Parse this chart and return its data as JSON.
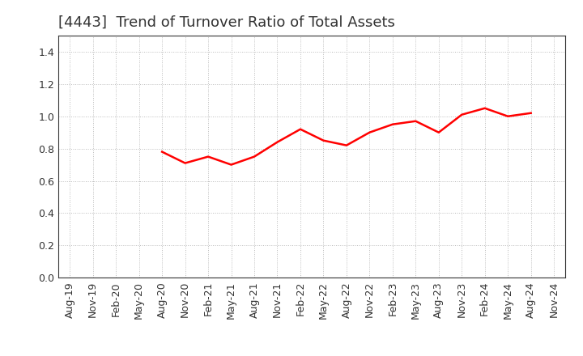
{
  "title": "[4443]  Trend of Turnover Ratio of Total Assets",
  "x_labels": [
    "Aug-19",
    "Nov-19",
    "Feb-20",
    "May-20",
    "Aug-20",
    "Nov-20",
    "Feb-21",
    "May-21",
    "Aug-21",
    "Nov-21",
    "Feb-22",
    "May-22",
    "Aug-22",
    "Nov-22",
    "Feb-23",
    "May-23",
    "Aug-23",
    "Nov-23",
    "Feb-24",
    "May-24",
    "Aug-24",
    "Nov-24"
  ],
  "x_values": [
    0,
    1,
    2,
    3,
    4,
    5,
    6,
    7,
    8,
    9,
    10,
    11,
    12,
    13,
    14,
    15,
    16,
    17,
    18,
    19,
    20,
    21
  ],
  "y_values": [
    null,
    null,
    null,
    null,
    0.78,
    0.71,
    0.75,
    0.7,
    0.75,
    0.84,
    0.92,
    0.85,
    0.82,
    0.9,
    0.95,
    0.97,
    0.9,
    1.01,
    1.05,
    1.0,
    1.02,
    null
  ],
  "ylim": [
    0.0,
    1.5
  ],
  "yticks": [
    0.0,
    0.2,
    0.4,
    0.6,
    0.8,
    1.0,
    1.2,
    1.4
  ],
  "ytick_labels": [
    "0.0",
    "0.2",
    "0.4",
    "0.6",
    "0.8",
    "1.0",
    "1.2",
    "1.4"
  ],
  "line_color": "#ff0000",
  "line_width": 1.8,
  "bg_color": "#ffffff",
  "grid_color": "#bbbbbb",
  "title_fontsize": 13,
  "tick_fontsize": 9,
  "title_color": "#333333",
  "tick_color": "#333333"
}
